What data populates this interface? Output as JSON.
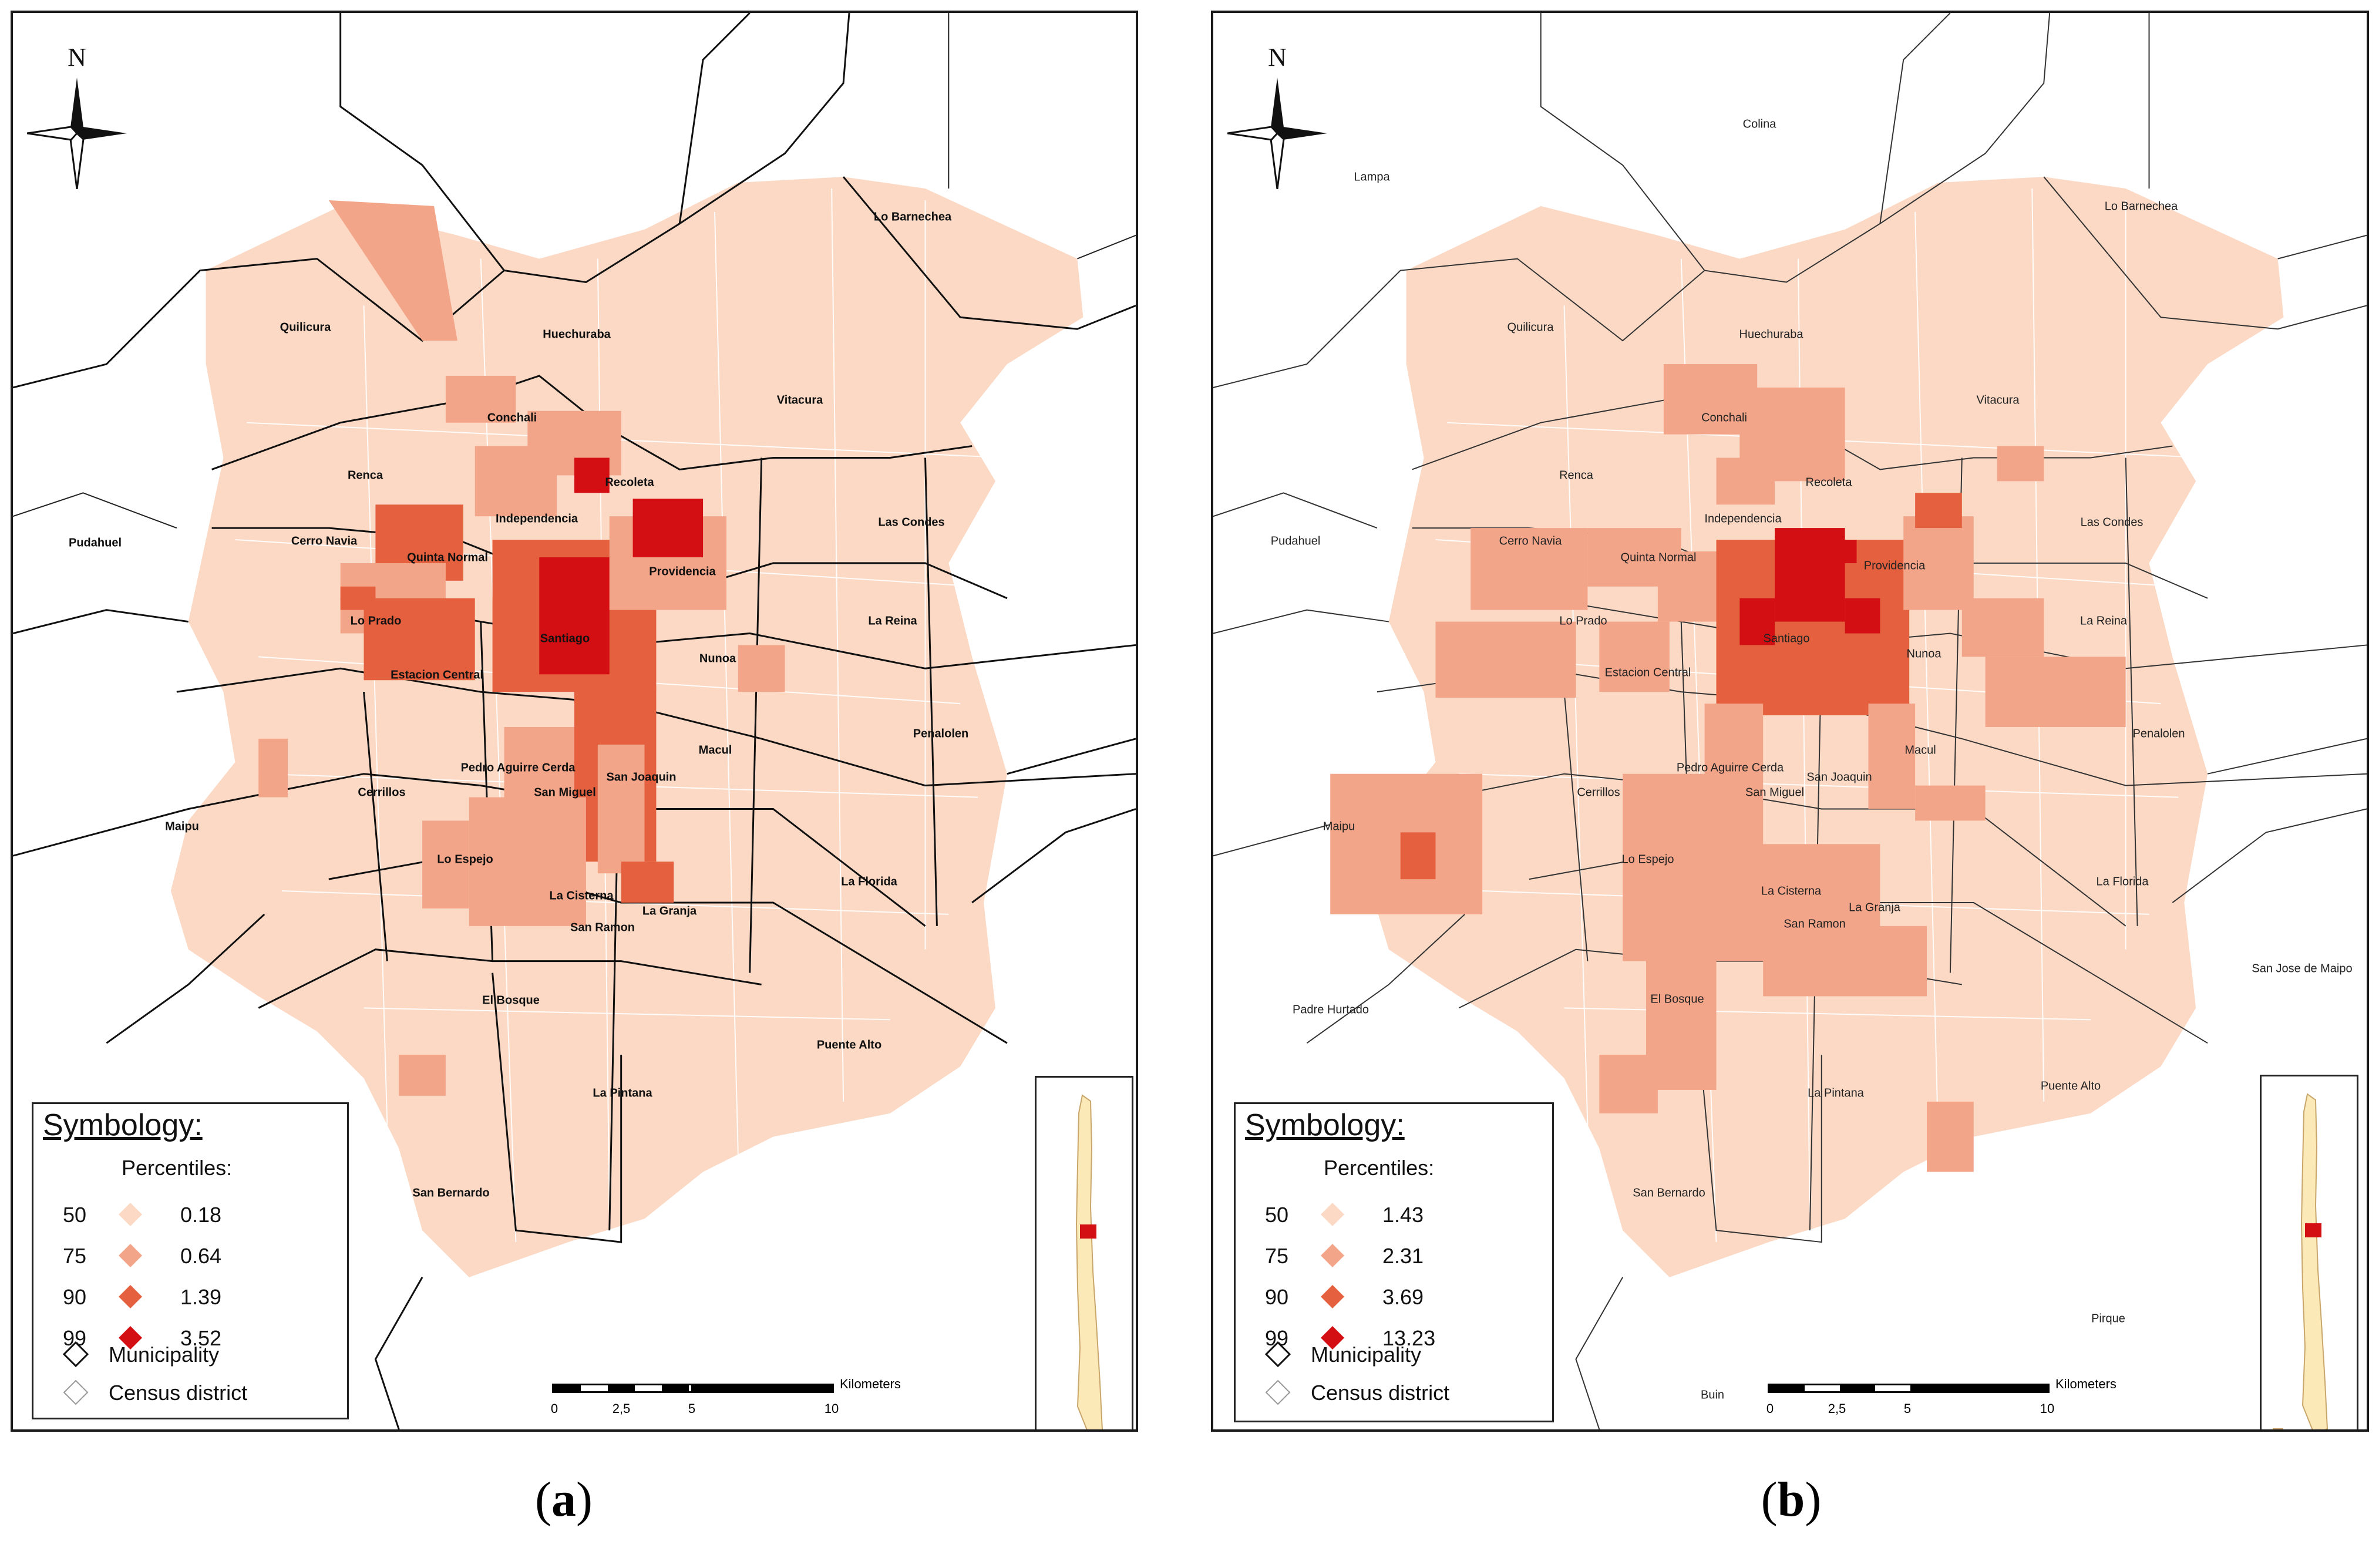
{
  "panels": [
    {
      "id": "a",
      "caption_open": "(",
      "caption_letter": "a",
      "caption_close": ")",
      "north_label": "N",
      "places": [
        "Quilicura",
        "Huechuraba",
        "Lo Barnechea",
        "Vitacura",
        "Conchali",
        "Renca",
        "Recoleta",
        "Independencia",
        "Pudahuel",
        "Cerro Navia",
        "Quinta Normal",
        "Providencia",
        "Las Condes",
        "Lo Prado",
        "Santiago",
        "La Reina",
        "Nunoa",
        "Estacion Central",
        "Penalolen",
        "Macul",
        "Pedro Aguirre Cerda",
        "San Joaquin",
        "Cerrillos",
        "San Miguel",
        "Maipu",
        "Lo Espejo",
        "La Florida",
        "La Cisterna",
        "La Granja",
        "San Ramon",
        "El Bosque",
        "Puente Alto",
        "La Pintana",
        "San Bernardo"
      ],
      "legend": {
        "title": "Symbology:",
        "subtitle": "Percentiles:",
        "rows": [
          {
            "percentile": "50",
            "value": "0.18",
            "color": "#fbd9c5"
          },
          {
            "percentile": "75",
            "value": "0.64",
            "color": "#f3a58a"
          },
          {
            "percentile": "90",
            "value": "1.39",
            "color": "#e4603f"
          },
          {
            "percentile": "99",
            "value": "3.52",
            "color": "#d40f14"
          }
        ],
        "municipality_label": "Municipality",
        "census_label": "Census district"
      },
      "scale": {
        "unit": "Kilometers",
        "ticks": [
          "0",
          "2,5",
          "5",
          "10"
        ]
      }
    },
    {
      "id": "b",
      "caption_open": "(",
      "caption_letter": "b",
      "caption_close": ")",
      "north_label": "N",
      "places": [
        "Colina",
        "Lampa",
        "Lo Barnechea",
        "Quilicura",
        "Huechuraba",
        "Vitacura",
        "Conchali",
        "Renca",
        "Recoleta",
        "Pudahuel",
        "Independencia",
        "Las Condes",
        "Cerro Navia",
        "Quinta Normal",
        "Providencia",
        "Lo Prado",
        "Santiago",
        "La Reina",
        "Nunoa",
        "Estacion Central",
        "Penalolen",
        "Macul",
        "Pedro Aguirre Cerda",
        "San Joaquin",
        "Cerrillos",
        "San Miguel",
        "Maipu",
        "Lo Espejo",
        "La Florida",
        "La Cisterna",
        "La Granja",
        "San Ramon",
        "San Jose de Maipo",
        "Padre Hurtado",
        "El Bosque",
        "Puente Alto",
        "La Pintana",
        "San Bernardo",
        "Pirque",
        "Buin"
      ],
      "legend": {
        "title": "Symbology:",
        "subtitle": "Percentiles:",
        "rows": [
          {
            "percentile": "50",
            "value": "1.43",
            "color": "#fbd9c5"
          },
          {
            "percentile": "75",
            "value": "2.31",
            "color": "#f3a58a"
          },
          {
            "percentile": "90",
            "value": "3.69",
            "color": "#e4603f"
          },
          {
            "percentile": "99",
            "value": "13.23",
            "color": "#d40f14"
          }
        ],
        "municipality_label": "Municipality",
        "census_label": "Census district"
      },
      "scale": {
        "unit": "Kilometers",
        "ticks": [
          "0",
          "2,5",
          "5",
          "10"
        ]
      }
    }
  ]
}
